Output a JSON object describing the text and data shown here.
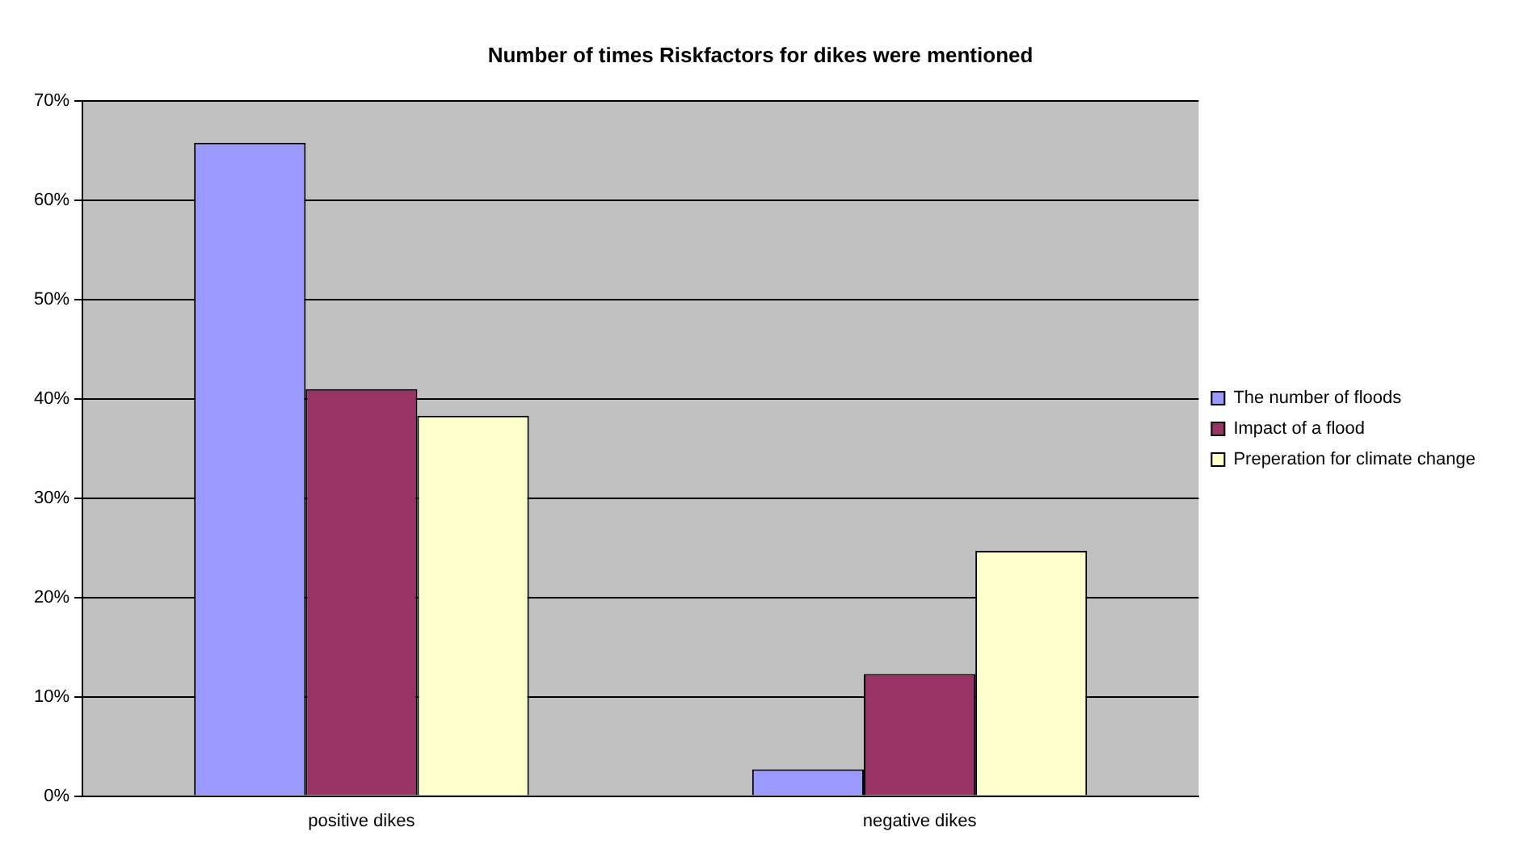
{
  "chart_data": {
    "type": "bar",
    "title": "Number of times Riskfactors for dikes were mentioned",
    "categories": [
      "positive dikes",
      "negative dikes"
    ],
    "series": [
      {
        "name": "The number of floods",
        "color": "#9999ff",
        "values": [
          65.8,
          2.7
        ]
      },
      {
        "name": "Impact of a flood",
        "color": "#993366",
        "values": [
          41.0,
          12.3
        ]
      },
      {
        "name": "Preperation for climate change",
        "color": "#ffffcc",
        "values": [
          38.3,
          24.7
        ]
      }
    ],
    "ylim": [
      0,
      70
    ],
    "yticks": [
      {
        "value": 0,
        "label": "0%"
      },
      {
        "value": 10,
        "label": "10%"
      },
      {
        "value": 20,
        "label": "20%"
      },
      {
        "value": 30,
        "label": "30%"
      },
      {
        "value": 40,
        "label": "40%"
      },
      {
        "value": 50,
        "label": "50%"
      },
      {
        "value": 60,
        "label": "60%"
      },
      {
        "value": 70,
        "label": "70%"
      }
    ],
    "grid": "y",
    "legend": "right"
  }
}
